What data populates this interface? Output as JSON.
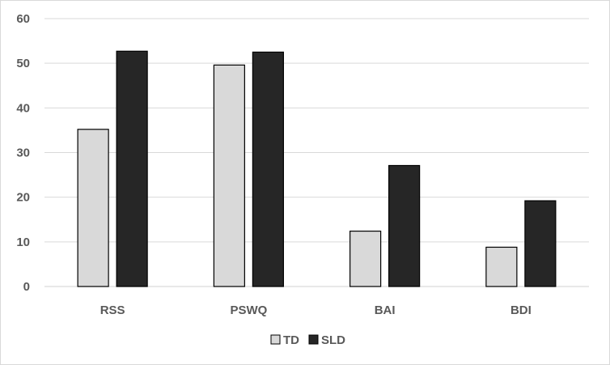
{
  "chart_data": {
    "type": "bar",
    "categories": [
      "RSS",
      "PSWQ",
      "BAI",
      "BDI"
    ],
    "series": [
      {
        "name": "TD",
        "values": [
          35.2,
          49.6,
          12.4,
          8.8
        ],
        "color": "#d9d9d9"
      },
      {
        "name": "SLD",
        "values": [
          52.7,
          52.5,
          27.1,
          19.2
        ],
        "color": "#262626"
      }
    ],
    "title": "",
    "xlabel": "",
    "ylabel": "",
    "ylim": [
      0,
      60
    ],
    "yticks": [
      "0",
      "10",
      "20",
      "30",
      "40",
      "50",
      "60"
    ],
    "grid": true,
    "legend_position": "bottom",
    "bar_outline_color": "#000000",
    "grid_color": "#d9d9d9"
  }
}
